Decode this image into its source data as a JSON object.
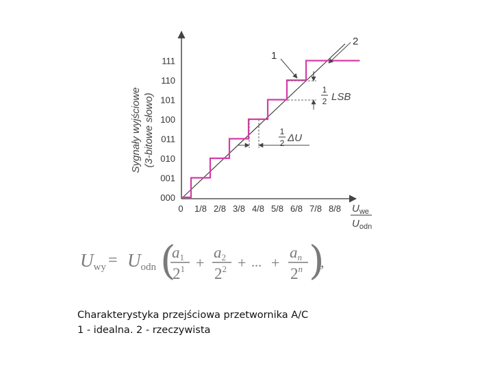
{
  "diagram": {
    "y_axis_label_line1": "Sygnały wyjściowe",
    "y_axis_label_line2": "(3-bitowe słowo)",
    "y_ticks": [
      "000",
      "001",
      "010",
      "011",
      "100",
      "101",
      "110",
      "111"
    ],
    "x_ticks": [
      "0",
      "1/8",
      "2/8",
      "3/8",
      "4/8",
      "5/8",
      "6/8",
      "7/8",
      "8/8"
    ],
    "x_axis_label_num": "U",
    "x_axis_label_num_sub": "we",
    "x_axis_label_den": "U",
    "x_axis_label_den_sub": "odn",
    "callout_1": "1",
    "callout_2": "2",
    "half_lsb_num": "1",
    "half_lsb_den": "2",
    "half_lsb_label": "LSB",
    "half_du_num": "1",
    "half_du_den": "2",
    "half_du_label": "ΔU",
    "colors": {
      "staircase": "#d63aa6",
      "ideal": "#333333",
      "axis": "#555555"
    }
  },
  "formula": {
    "lhs": "U",
    "lhs_sub": "wy",
    "eq": "=",
    "u": "U",
    "u_sub": "odn",
    "t1_num": "a",
    "t1_num_sub": "1",
    "t1_den": "2",
    "t1_den_sup": "1",
    "t2_num": "a",
    "t2_num_sub": "2",
    "t2_den": "2",
    "t2_den_sup": "2",
    "plus": "+",
    "ellipsis": "...",
    "tn_num": "a",
    "tn_num_sub": "n",
    "tn_den": "2",
    "tn_den_sup": "n",
    "trail": ","
  },
  "caption": {
    "line1": "Charakterystyka przejściowa przetwornika A/C",
    "line2": "1 - idealna. 2 - rzeczywista"
  }
}
